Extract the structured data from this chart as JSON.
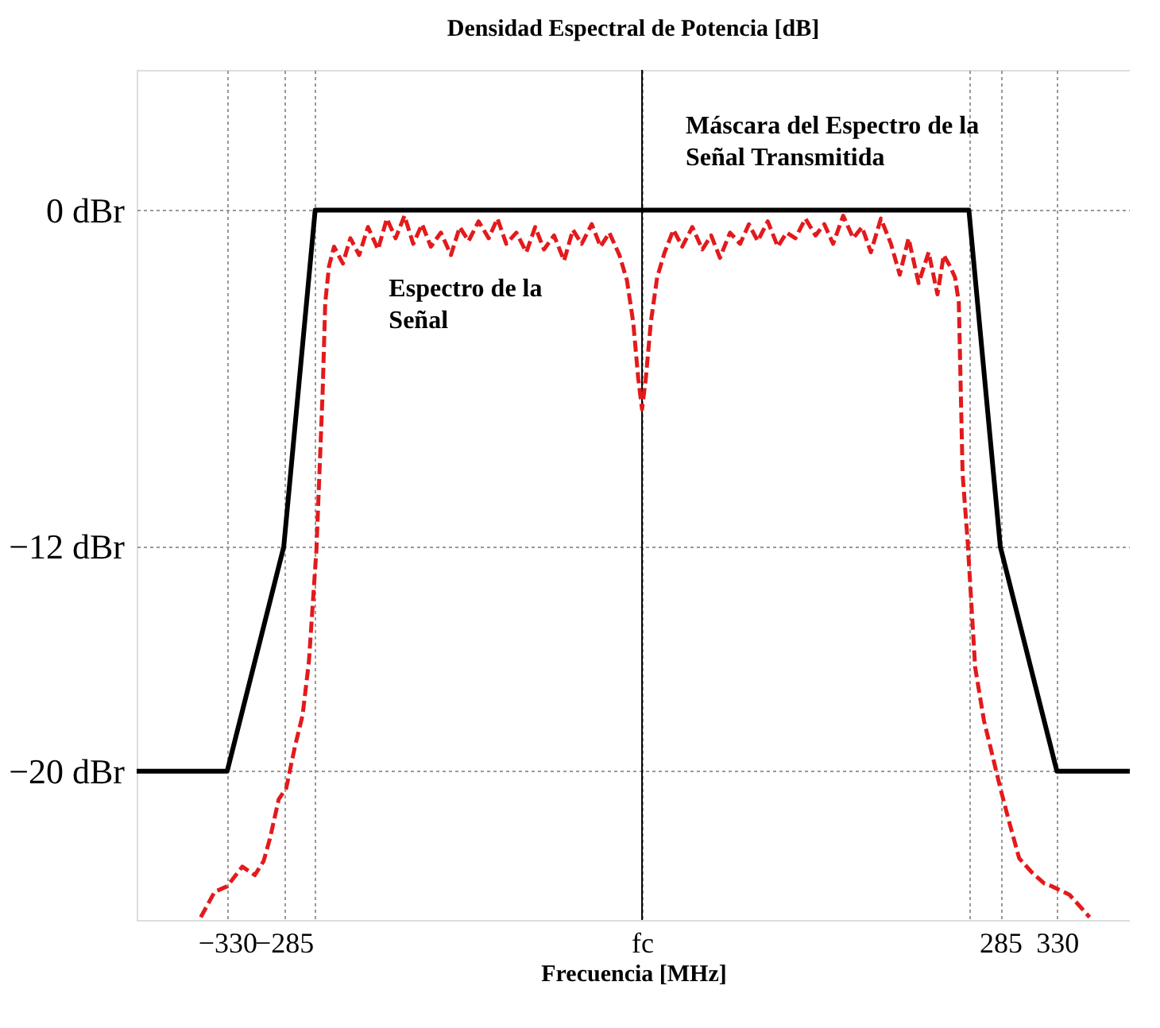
{
  "chart_data": {
    "type": "line",
    "title": "Densidad Espectral de Potencia [dB]",
    "xlabel": "Frecuencia [MHz]",
    "xlim": [
      -402,
      388
    ],
    "ylim": [
      -25.3,
      5
    ],
    "xticks": [
      {
        "value": -330,
        "label": "−330"
      },
      {
        "value": -285,
        "label": "−285"
      },
      {
        "value": -260,
        "label": null
      },
      {
        "value": 0,
        "label": "fc"
      },
      {
        "value": 260,
        "label": null
      },
      {
        "value": 285,
        "label": "285"
      },
      {
        "value": 330,
        "label": "330"
      }
    ],
    "yticks": [
      {
        "value": -20,
        "label": "−20 dBr"
      },
      {
        "value": -12,
        "label": "−12 dBr"
      },
      {
        "value": 0,
        "label": "0  dBr"
      }
    ],
    "grid": true,
    "ref_lines": [
      {
        "axis": "x",
        "value": 0,
        "color": "#000000"
      }
    ],
    "annotations": [
      {
        "text": "Máscara del Espectro de la\nSeñal Transmitida",
        "x": 12,
        "y": 0.2
      },
      {
        "text": "Espectro de la\nSeñal",
        "x": -252,
        "y": -5.5
      }
    ],
    "series": [
      {
        "color": "#000000",
        "line_style": "solid",
        "x": [
          -402,
          -330,
          -285,
          -260,
          260,
          285,
          330,
          388
        ],
        "values": [
          -20,
          -20,
          -12,
          0,
          0,
          -12,
          -20,
          -20
        ]
      },
      {
        "color": "#e31a1c",
        "line_style": "dashed",
        "x": [
          -351,
          -340,
          -330,
          -318,
          -308,
          -301,
          -296,
          -289,
          -283,
          -276,
          -270,
          -265,
          -259,
          -254,
          -252,
          -249,
          -245,
          -238,
          -232,
          -225,
          -218,
          -210,
          -203,
          -196,
          -189,
          -182,
          -175,
          -168,
          -160,
          -152,
          -145,
          -138,
          -130,
          -122,
          -115,
          -108,
          -100,
          -92,
          -85,
          -78,
          -70,
          -62,
          -55,
          -48,
          -40,
          -33,
          -26,
          -18,
          -12,
          -7,
          -3,
          0,
          3,
          7,
          12,
          18,
          25,
          32,
          40,
          48,
          55,
          62,
          70,
          78,
          85,
          92,
          100,
          108,
          115,
          122,
          130,
          138,
          145,
          152,
          160,
          168,
          175,
          182,
          190,
          198,
          205,
          212,
          220,
          228,
          235,
          240,
          245,
          249,
          252,
          255,
          259,
          265,
          272,
          278,
          285,
          292,
          300,
          310,
          320,
          326,
          340,
          356
        ],
        "values": [
          -25.2,
          -24.3,
          -24.1,
          -23.4,
          -23.7,
          -23.2,
          -22.4,
          -21.0,
          -20.6,
          -19.1,
          -18.0,
          -16.1,
          -12.1,
          -6.4,
          -3.3,
          -2.0,
          -1.3,
          -1.9,
          -1.0,
          -1.6,
          -0.6,
          -1.4,
          -0.3,
          -1.0,
          -0.2,
          -1.2,
          -0.5,
          -1.3,
          -0.8,
          -1.6,
          -0.6,
          -1.1,
          -0.4,
          -1.0,
          -0.3,
          -1.2,
          -0.8,
          -1.5,
          -0.6,
          -1.4,
          -0.9,
          -1.8,
          -0.7,
          -1.2,
          -0.5,
          -1.3,
          -0.8,
          -1.6,
          -2.5,
          -4.0,
          -6.0,
          -7.1,
          -6.0,
          -4.0,
          -2.4,
          -1.5,
          -0.7,
          -1.3,
          -0.6,
          -1.4,
          -0.9,
          -1.7,
          -0.8,
          -1.2,
          -0.5,
          -1.1,
          -0.4,
          -1.3,
          -0.8,
          -1.0,
          -0.3,
          -0.9,
          -0.5,
          -1.2,
          -0.2,
          -1.0,
          -0.6,
          -1.5,
          -0.3,
          -1.2,
          -2.3,
          -1.0,
          -2.6,
          -1.5,
          -3.0,
          -1.6,
          -2.0,
          -2.4,
          -3.3,
          -9.4,
          -11.8,
          -16.3,
          -18.2,
          -19.3,
          -20.6,
          -21.8,
          -23.1,
          -23.6,
          -24.0,
          -24.1,
          -24.4,
          -25.2
        ]
      }
    ]
  }
}
